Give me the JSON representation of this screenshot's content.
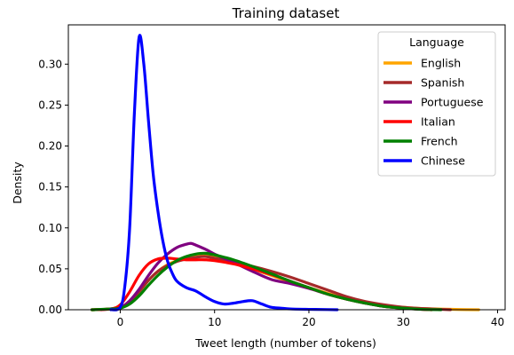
{
  "chart_data": {
    "type": "line",
    "title": "Training dataset",
    "xlabel": "Tweet length (number of tokens)",
    "ylabel": "Density",
    "xlim": [
      -5.5,
      40.8
    ],
    "ylim": [
      0,
      0.348
    ],
    "xticks": [
      0,
      10,
      20,
      30,
      40
    ],
    "yticks": [
      0.0,
      0.05,
      0.1,
      0.15,
      0.2,
      0.25,
      0.3
    ],
    "ytick_labels": [
      "0.00",
      "0.05",
      "0.10",
      "0.15",
      "0.20",
      "0.25",
      "0.30"
    ],
    "legend_title": "Language",
    "legend_position": "top-right",
    "grid": false,
    "series": [
      {
        "name": "English",
        "color": "#ffa500",
        "x": [
          -3,
          -1,
          0,
          1,
          2,
          3,
          4,
          5,
          6,
          7,
          8,
          9,
          10,
          12,
          14,
          16,
          18,
          20,
          22,
          24,
          26,
          28,
          30,
          32,
          34,
          36,
          38
        ],
        "y": [
          0,
          0.001,
          0.003,
          0.01,
          0.022,
          0.036,
          0.047,
          0.055,
          0.06,
          0.064,
          0.066,
          0.066,
          0.064,
          0.058,
          0.05,
          0.042,
          0.034,
          0.027,
          0.02,
          0.014,
          0.009,
          0.005,
          0.003,
          0.0015,
          0.0008,
          0.0003,
          0
        ]
      },
      {
        "name": "Spanish",
        "color": "#a52a2a",
        "x": [
          -3,
          -1,
          0,
          1,
          2,
          3,
          4,
          5,
          6,
          7,
          8,
          9,
          10,
          12,
          14,
          16,
          18,
          20,
          22,
          24,
          26,
          28,
          30,
          32,
          34,
          35
        ],
        "y": [
          0,
          0.001,
          0.003,
          0.01,
          0.022,
          0.036,
          0.047,
          0.054,
          0.059,
          0.062,
          0.064,
          0.065,
          0.063,
          0.058,
          0.053,
          0.047,
          0.04,
          0.032,
          0.024,
          0.016,
          0.01,
          0.006,
          0.003,
          0.0015,
          0.0005,
          0
        ]
      },
      {
        "name": "Portuguese",
        "color": "#800080",
        "x": [
          -2,
          0,
          1,
          2,
          3,
          4,
          5,
          6,
          7,
          7.5,
          8,
          9,
          10,
          11,
          12,
          14,
          16,
          18,
          20,
          22,
          24,
          26,
          28,
          30,
          32,
          33
        ],
        "y": [
          0,
          0.003,
          0.011,
          0.025,
          0.042,
          0.057,
          0.068,
          0.076,
          0.08,
          0.081,
          0.079,
          0.074,
          0.068,
          0.063,
          0.058,
          0.047,
          0.037,
          0.032,
          0.026,
          0.019,
          0.013,
          0.008,
          0.004,
          0.002,
          0.0005,
          0
        ]
      },
      {
        "name": "Italian",
        "color": "#ff0000",
        "x": [
          -3,
          -1,
          0,
          1,
          2,
          3,
          4,
          5,
          6,
          7,
          8,
          9,
          10,
          12,
          14,
          16,
          18,
          20,
          22,
          24,
          26,
          28,
          30,
          32,
          33
        ],
        "y": [
          0,
          0.001,
          0.006,
          0.022,
          0.042,
          0.056,
          0.062,
          0.063,
          0.062,
          0.061,
          0.061,
          0.061,
          0.06,
          0.056,
          0.05,
          0.043,
          0.035,
          0.027,
          0.019,
          0.013,
          0.008,
          0.004,
          0.002,
          0.0005,
          0
        ]
      },
      {
        "name": "French",
        "color": "#008000",
        "x": [
          -3,
          -1,
          0,
          1,
          2,
          3,
          4,
          5,
          6,
          7,
          8,
          9,
          10,
          12,
          14,
          16,
          18,
          20,
          22,
          24,
          26,
          28,
          30,
          32,
          34
        ],
        "y": [
          0,
          0.001,
          0.002,
          0.007,
          0.017,
          0.03,
          0.042,
          0.052,
          0.06,
          0.065,
          0.068,
          0.069,
          0.067,
          0.061,
          0.053,
          0.044,
          0.035,
          0.027,
          0.019,
          0.013,
          0.008,
          0.004,
          0.002,
          0.0005,
          0
        ]
      },
      {
        "name": "Chinese",
        "color": "#0000ff",
        "x": [
          -1,
          0,
          0.5,
          1,
          1.5,
          2,
          2.5,
          3,
          3.5,
          4,
          4.5,
          5,
          5.5,
          6,
          7,
          8,
          9,
          10,
          11,
          12,
          13,
          14,
          15,
          16,
          17,
          18,
          20,
          22,
          23
        ],
        "y": [
          0,
          0.003,
          0.03,
          0.1,
          0.24,
          0.333,
          0.3,
          0.23,
          0.165,
          0.12,
          0.085,
          0.06,
          0.045,
          0.035,
          0.027,
          0.023,
          0.016,
          0.01,
          0.007,
          0.008,
          0.01,
          0.011,
          0.007,
          0.003,
          0.002,
          0.001,
          0.0005,
          0.0002,
          0
        ]
      }
    ]
  }
}
